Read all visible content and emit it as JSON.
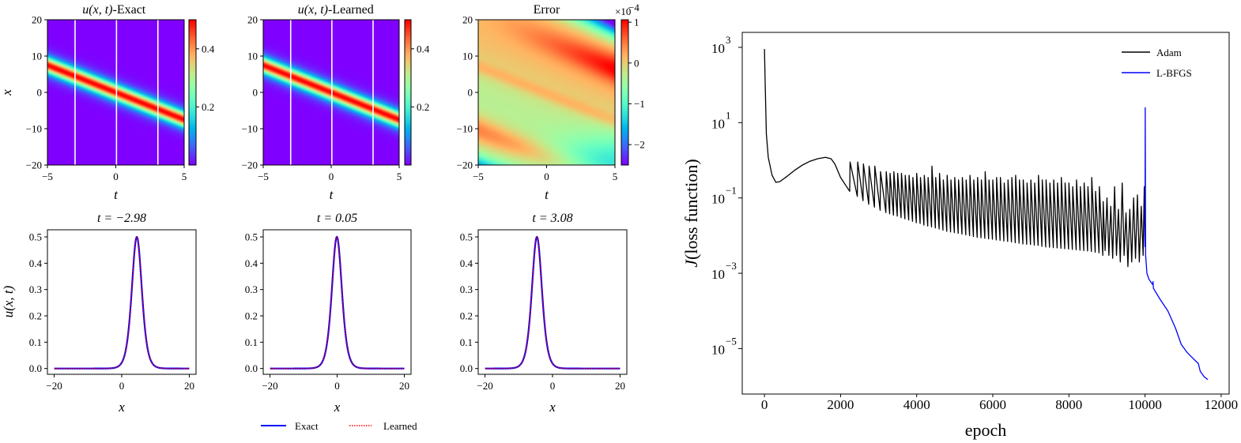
{
  "colors": {
    "exact": "#0000ff",
    "learned": "#ff0000",
    "adam": "#000000",
    "lbfgs": "#0000ff",
    "slice_lines": "#ffffff",
    "colormap": "rainbow"
  },
  "chart_data": [
    {
      "type": "heatmap",
      "title_math": "u(x, t)",
      "title_rest": "-Exact",
      "xlabel": "t",
      "ylabel": "x",
      "xlim": [
        -5,
        5
      ],
      "ylim": [
        -20,
        20
      ],
      "xticks": [
        "−5",
        "0",
        "5"
      ],
      "xtick_values": [
        -5,
        0,
        5
      ],
      "yticks": [
        "−20",
        "−10",
        "0",
        "10",
        "20"
      ],
      "ytick_values": [
        -20,
        -10,
        0,
        10,
        20
      ],
      "colorbar": {
        "range": [
          0,
          0.5
        ],
        "ticks": [
          "0.2",
          "0.4"
        ],
        "tick_values": [
          0.2,
          0.4
        ]
      },
      "slice_t": [
        -2.98,
        0.05,
        3.08
      ]
    },
    {
      "type": "heatmap",
      "title_math": "u(x, t)",
      "title_rest": "-Learned",
      "xlabel": "t",
      "xlim": [
        -5,
        5
      ],
      "ylim": [
        -20,
        20
      ],
      "xticks": [
        "−5",
        "0",
        "5"
      ],
      "xtick_values": [
        -5,
        0,
        5
      ],
      "yticks": [
        "−20",
        "−10",
        "0",
        "10",
        "20"
      ],
      "ytick_values": [
        -20,
        -10,
        0,
        10,
        20
      ],
      "colorbar": {
        "range": [
          0,
          0.5
        ],
        "ticks": [
          "0.2",
          "0.4"
        ],
        "tick_values": [
          0.2,
          0.4
        ]
      },
      "slice_t": [
        -2.98,
        0.05,
        3.08
      ]
    },
    {
      "type": "heatmap",
      "title_math": "",
      "title_rest": "Error",
      "xlabel": "t",
      "xlim": [
        -5,
        5
      ],
      "ylim": [
        -20,
        20
      ],
      "xticks": [
        "−5",
        "0",
        "5"
      ],
      "xtick_values": [
        -5,
        0,
        5
      ],
      "yticks": [
        "−20",
        "−10",
        "0",
        "10",
        "20"
      ],
      "ytick_values": [
        -20,
        -10,
        0,
        10,
        20
      ],
      "colorbar": {
        "range": [
          -2.5,
          1.06
        ],
        "ticks": [
          "1",
          "0",
          "−1",
          "−2"
        ],
        "tick_values": [
          1,
          0,
          -1,
          -2
        ],
        "scale_base": "×10",
        "scale_exp": "−4"
      }
    },
    {
      "type": "line",
      "title": "t = −2.98",
      "t": -2.98,
      "xlabel": "x",
      "ylabel": "u(x, t)",
      "xlim": [
        -22,
        22
      ],
      "ylim": [
        -0.022,
        0.527
      ],
      "xticks": [
        "−20",
        "0",
        "20"
      ],
      "xtick_values": [
        -20,
        0,
        20
      ],
      "yticks": [
        "0.0",
        "0.1",
        "0.2",
        "0.3",
        "0.4",
        "0.5"
      ],
      "ytick_values": [
        0,
        0.1,
        0.2,
        0.3,
        0.4,
        0.5
      ],
      "peak": {
        "x": 4.47,
        "u": 0.5
      }
    },
    {
      "type": "line",
      "title": "t = 0.05",
      "t": 0.05,
      "xlabel": "x",
      "xlim": [
        -22,
        22
      ],
      "ylim": [
        -0.022,
        0.527
      ],
      "xticks": [
        "−20",
        "0",
        "20"
      ],
      "xtick_values": [
        -20,
        0,
        20
      ],
      "yticks": [
        "0.0",
        "0.1",
        "0.2",
        "0.3",
        "0.4",
        "0.5"
      ],
      "ytick_values": [
        0,
        0.1,
        0.2,
        0.3,
        0.4,
        0.5
      ],
      "peak": {
        "x": -0.08,
        "u": 0.5
      }
    },
    {
      "type": "line",
      "title": "t = 3.08",
      "t": 3.08,
      "xlabel": "x",
      "xlim": [
        -22,
        22
      ],
      "ylim": [
        -0.022,
        0.527
      ],
      "xticks": [
        "−20",
        "0",
        "20"
      ],
      "xtick_values": [
        -20,
        0,
        20
      ],
      "yticks": [
        "0.0",
        "0.1",
        "0.2",
        "0.3",
        "0.4",
        "0.5"
      ],
      "ytick_values": [
        0,
        0.1,
        0.2,
        0.3,
        0.4,
        0.5
      ],
      "peak": {
        "x": -4.62,
        "u": 0.5
      }
    },
    {
      "type": "line",
      "yscale": "log",
      "xlabel": "epoch",
      "ylabel_math": "J",
      "ylabel_rest": "(loss function)",
      "xlim": [
        -584,
        12210
      ],
      "ylim": [
        6.2e-07,
        2500
      ],
      "xticks": [
        "0",
        "2000",
        "4000",
        "6000",
        "8000",
        "10000",
        "12000"
      ],
      "xtick_values": [
        0,
        2000,
        4000,
        6000,
        8000,
        10000,
        12000
      ],
      "ytick_base": "10",
      "ytick_exps": [
        "3",
        "1",
        "−1",
        "−3",
        "−5"
      ],
      "ytick_values": [
        1000,
        10,
        0.1,
        0.001,
        1e-05
      ],
      "legend_position": "top-right",
      "series": [
        {
          "name": "Adam",
          "points": [
            [
              0,
              900
            ],
            [
              20,
              100
            ],
            [
              50,
              5
            ],
            [
              100,
              1.2
            ],
            [
              200,
              0.4
            ],
            [
              300,
              0.26
            ],
            [
              400,
              0.27
            ],
            [
              600,
              0.38
            ],
            [
              800,
              0.55
            ],
            [
              1000,
              0.75
            ],
            [
              1200,
              0.95
            ],
            [
              1400,
              1.1
            ],
            [
              1600,
              1.2
            ],
            [
              1750,
              1.1
            ],
            [
              1850,
              0.8
            ],
            [
              2000,
              0.35
            ],
            [
              2240,
              0.15
            ],
            [
              2250,
              0.9
            ],
            [
              2440,
              0.11
            ],
            [
              2450,
              0.9
            ],
            [
              2590,
              0.085
            ],
            [
              2600,
              0.8
            ],
            [
              2740,
              0.068
            ],
            [
              2750,
              0.7
            ],
            [
              2890,
              0.057
            ],
            [
              2900,
              0.7
            ],
            [
              3040,
              0.047
            ],
            [
              3050,
              0.5
            ],
            [
              3190,
              0.041
            ],
            [
              3200,
              0.5
            ],
            [
              3290,
              0.038
            ],
            [
              3300,
              0.45
            ],
            [
              3390,
              0.035
            ],
            [
              3400,
              0.5
            ],
            [
              3490,
              0.033
            ],
            [
              3500,
              0.45
            ],
            [
              3590,
              0.03
            ],
            [
              3600,
              0.45
            ],
            [
              3690,
              0.028
            ],
            [
              3700,
              0.4
            ],
            [
              3790,
              0.026
            ],
            [
              3800,
              0.4
            ],
            [
              3890,
              0.024
            ],
            [
              3900,
              0.35
            ],
            [
              3990,
              0.022
            ],
            [
              4000,
              0.45
            ],
            [
              4090,
              0.021
            ],
            [
              4100,
              0.35
            ],
            [
              4190,
              0.019
            ],
            [
              4200,
              0.4
            ],
            [
              4290,
              0.018
            ],
            [
              4300,
              0.35
            ],
            [
              4390,
              0.017
            ],
            [
              4400,
              0.7
            ],
            [
              4490,
              0.016
            ],
            [
              4500,
              0.35
            ],
            [
              4590,
              0.015
            ],
            [
              4600,
              0.45
            ],
            [
              4690,
              0.014
            ],
            [
              4700,
              0.3
            ],
            [
              4790,
              0.013
            ],
            [
              4800,
              0.4
            ],
            [
              4890,
              0.0125
            ],
            [
              4900,
              0.3
            ],
            [
              4990,
              0.012
            ],
            [
              5000,
              0.35
            ],
            [
              5090,
              0.0115
            ],
            [
              5100,
              0.3
            ],
            [
              5190,
              0.011
            ],
            [
              5200,
              0.35
            ],
            [
              5290,
              0.0105
            ],
            [
              5300,
              0.3
            ],
            [
              5390,
              0.01
            ],
            [
              5400,
              0.4
            ],
            [
              5490,
              0.0095
            ],
            [
              5500,
              0.3
            ],
            [
              5590,
              0.009
            ],
            [
              5600,
              0.35
            ],
            [
              5690,
              0.0088
            ],
            [
              5700,
              0.3
            ],
            [
              5790,
              0.0085
            ],
            [
              5800,
              0.5
            ],
            [
              5890,
              0.0082
            ],
            [
              5900,
              0.3
            ],
            [
              5990,
              0.008
            ],
            [
              6000,
              0.3
            ],
            [
              6090,
              0.0077
            ],
            [
              6100,
              0.35
            ],
            [
              6190,
              0.0075
            ],
            [
              6200,
              0.35
            ],
            [
              6290,
              0.0072
            ],
            [
              6300,
              0.25
            ],
            [
              6390,
              0.007
            ],
            [
              6400,
              0.3
            ],
            [
              6490,
              0.0068
            ],
            [
              6500,
              0.35
            ],
            [
              6590,
              0.0065
            ],
            [
              6600,
              0.4
            ],
            [
              6690,
              0.0063
            ],
            [
              6700,
              0.3
            ],
            [
              6790,
              0.006
            ],
            [
              6800,
              0.3
            ],
            [
              6890,
              0.0059
            ],
            [
              6900,
              0.25
            ],
            [
              6990,
              0.0058
            ],
            [
              7000,
              0.3
            ],
            [
              7090,
              0.0056
            ],
            [
              7100,
              0.25
            ],
            [
              7190,
              0.0055
            ],
            [
              7200,
              0.4
            ],
            [
              7290,
              0.0052
            ],
            [
              7300,
              0.3
            ],
            [
              7390,
              0.005
            ],
            [
              7400,
              0.3
            ],
            [
              7490,
              0.0049
            ],
            [
              7500,
              0.25
            ],
            [
              7590,
              0.0048
            ],
            [
              7600,
              0.3
            ],
            [
              7690,
              0.0047
            ],
            [
              7700,
              0.25
            ],
            [
              7790,
              0.0046
            ],
            [
              7800,
              0.35
            ],
            [
              7890,
              0.0045
            ],
            [
              7900,
              0.25
            ],
            [
              7990,
              0.0044
            ],
            [
              8000,
              0.25
            ],
            [
              8090,
              0.0043
            ],
            [
              8100,
              0.2
            ],
            [
              8190,
              0.0042
            ],
            [
              8200,
              0.3
            ],
            [
              8290,
              0.0041
            ],
            [
              8300,
              0.2
            ],
            [
              8390,
              0.004
            ],
            [
              8400,
              0.25
            ],
            [
              8490,
              0.0039
            ],
            [
              8500,
              0.2
            ],
            [
              8590,
              0.0038
            ],
            [
              8600,
              0.35
            ],
            [
              8690,
              0.0036
            ],
            [
              8700,
              0.15
            ],
            [
              8790,
              0.0035
            ],
            [
              8800,
              0.2
            ],
            [
              8890,
              0.003
            ],
            [
              8900,
              0.08
            ],
            [
              8950,
              0.004
            ],
            [
              9000,
              0.1
            ],
            [
              9050,
              0.003
            ],
            [
              9100,
              0.06
            ],
            [
              9150,
              0.0025
            ],
            [
              9200,
              0.2
            ],
            [
              9250,
              0.003
            ],
            [
              9300,
              0.05
            ],
            [
              9350,
              0.002
            ],
            [
              9400,
              0.25
            ],
            [
              9450,
              0.003
            ],
            [
              9500,
              0.04
            ],
            [
              9550,
              0.0015
            ],
            [
              9600,
              0.05
            ],
            [
              9650,
              0.002
            ],
            [
              9700,
              0.1
            ],
            [
              9750,
              0.0025
            ],
            [
              9800,
              0.12
            ],
            [
              9850,
              0.002
            ],
            [
              9900,
              0.06
            ],
            [
              9950,
              0.003
            ],
            [
              9980,
              0.2
            ],
            [
              10000,
              0.005
            ]
          ]
        },
        {
          "name": "L-BFGS",
          "points": [
            [
              10000,
              0.005
            ],
            [
              10005,
              25
            ],
            [
              10015,
              0.003
            ],
            [
              10050,
              0.001
            ],
            [
              10100,
              0.0007
            ],
            [
              10200,
              0.0005
            ],
            [
              10210,
              0.0006
            ],
            [
              10220,
              0.0004
            ],
            [
              10400,
              0.0002
            ],
            [
              10600,
              0.0001
            ],
            [
              10800,
              3.5e-05
            ],
            [
              10950,
              1.3e-05
            ],
            [
              11100,
              8e-06
            ],
            [
              11300,
              5e-06
            ],
            [
              11400,
              4e-06
            ],
            [
              11450,
              2.5e-06
            ],
            [
              11550,
              1.8e-06
            ],
            [
              11650,
              1.5e-06
            ]
          ]
        }
      ]
    }
  ],
  "shared_legend": [
    "Exact",
    "Learned"
  ]
}
